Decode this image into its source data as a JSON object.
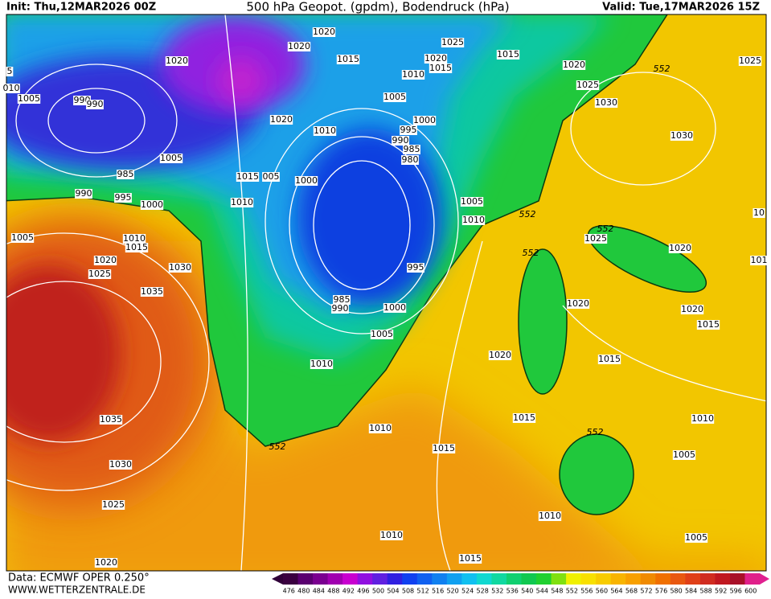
{
  "header": {
    "init": "Init: Thu,12MAR2026 00Z",
    "title": "500 hPa Geopot. (gpdm), Bodendruck (hPa)",
    "valid": "Valid: Tue,17MAR2026 15Z"
  },
  "footer": {
    "source": "Data: ECMWF OPER 0.250°",
    "site": "WWW.WETTERZENTRALE.DE"
  },
  "isobar_labels": [
    "1020",
    "1020",
    "1015",
    "1020",
    "1025",
    "1015",
    "1020",
    "1015",
    "1010",
    "1020",
    "1025",
    "552",
    "1025",
    "5",
    "010",
    "1005",
    "990",
    "990",
    "1005",
    "1030",
    "1000",
    "1020",
    "1010",
    "995",
    "1030",
    "990",
    "985",
    "980",
    "1005",
    "985",
    "1015",
    "005",
    "1000",
    "990",
    "995",
    "1000",
    "1010",
    "1005",
    "552",
    "1010",
    "10",
    "1005",
    "1010",
    "552",
    "1025",
    "1015",
    "1020",
    "552",
    "101",
    "1020",
    "1030",
    "995",
    "1025",
    "1035",
    "985",
    "990",
    "1000",
    "1020",
    "1020",
    "1015",
    "1005",
    "1020",
    "1015",
    "1010",
    "1035",
    "1015",
    "1010",
    "1010",
    "552",
    "552",
    "1015",
    "1005",
    "1030",
    "1025",
    "1010",
    "1010",
    "1005",
    "1015",
    "1020"
  ],
  "colorbar": {
    "labels": [
      476,
      480,
      484,
      488,
      492,
      496,
      500,
      504,
      508,
      512,
      516,
      520,
      524,
      528,
      532,
      536,
      540,
      544,
      548,
      552,
      556,
      560,
      564,
      568,
      572,
      576,
      580,
      584,
      588,
      592,
      596,
      600
    ]
  }
}
